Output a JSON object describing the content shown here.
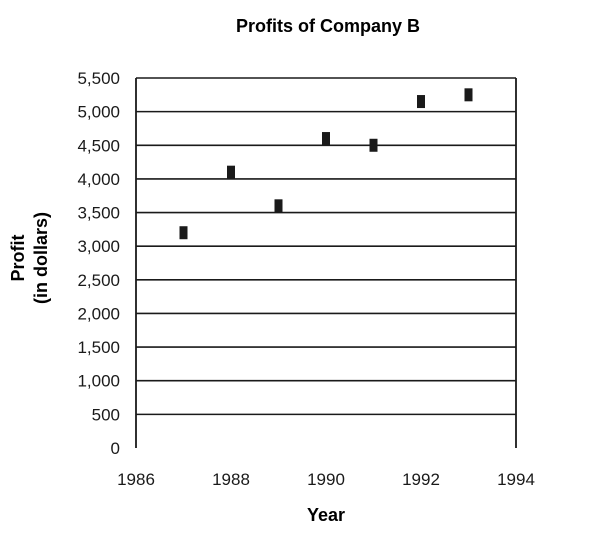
{
  "chart_data": {
    "type": "scatter",
    "title": "Profits of Company B",
    "xlabel": "Year",
    "ylabel": [
      "Profit",
      "(in dollars)"
    ],
    "xlim": [
      1986,
      1994
    ],
    "ylim": [
      0,
      5500
    ],
    "xticks": [
      1986,
      1988,
      1990,
      1992,
      1994
    ],
    "xtick_labels": [
      "1986",
      "1988",
      "1990",
      "1992",
      "1994"
    ],
    "yticks": [
      0,
      500,
      1000,
      1500,
      2000,
      2500,
      3000,
      3500,
      4000,
      4500,
      5000,
      5500
    ],
    "ytick_labels": [
      "0",
      "500",
      "1,000",
      "1,500",
      "2,000",
      "2,500",
      "3,000",
      "3,500",
      "4,000",
      "4,500",
      "5,000",
      "5,500"
    ],
    "grid": "horizontal",
    "legend": "none",
    "points": [
      {
        "x": 1987,
        "y": 3200
      },
      {
        "x": 1988,
        "y": 4100
      },
      {
        "x": 1989,
        "y": 3600
      },
      {
        "x": 1990,
        "y": 4600
      },
      {
        "x": 1991,
        "y": 4500
      },
      {
        "x": 1992,
        "y": 5150
      },
      {
        "x": 1993,
        "y": 5250
      }
    ],
    "colors": {
      "marker": "#1a1a1a",
      "grid": "#1a1a1a",
      "text": "#1a1a1a"
    }
  }
}
